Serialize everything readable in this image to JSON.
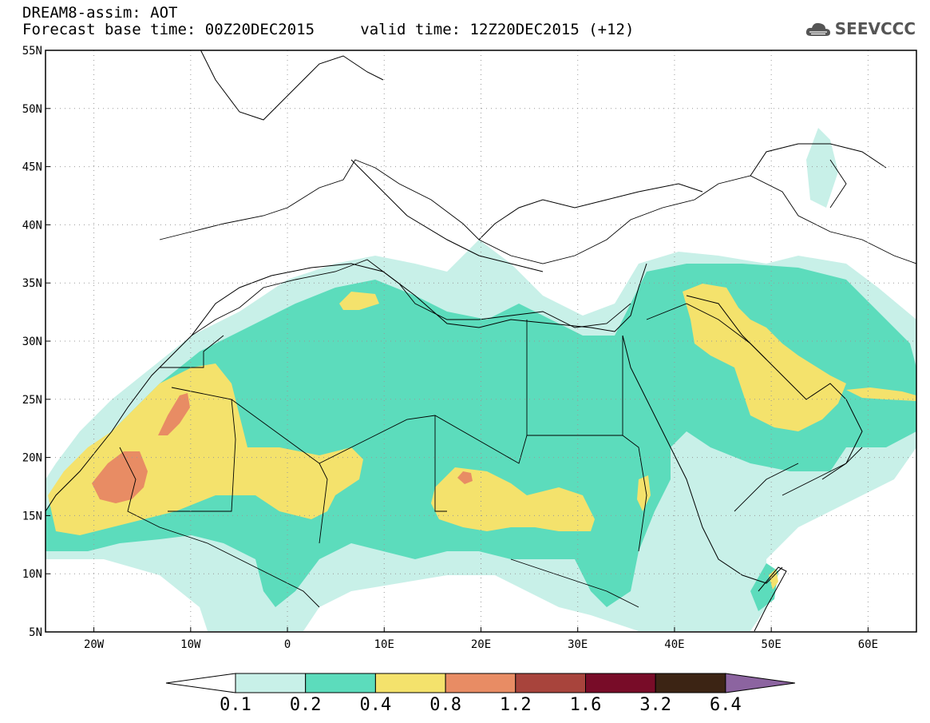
{
  "header": {
    "title": "DREAM8-assim: AOT",
    "subtitle_base": "Forecast base time: 00Z20DEC2015",
    "subtitle_valid": "valid time: 12Z20DEC2015 (+12)",
    "brand": "SEEVCCC"
  },
  "map": {
    "lon_range": [
      -25,
      65
    ],
    "lat_range": [
      5,
      55
    ],
    "lon_ticks": [
      "20W",
      "10W",
      "0",
      "10E",
      "20E",
      "30E",
      "40E",
      "50E",
      "60E"
    ],
    "lat_ticks": [
      "55N",
      "50N",
      "45N",
      "40N",
      "35N",
      "30N",
      "25N",
      "20N",
      "15N",
      "10N",
      "5N"
    ],
    "grid": true,
    "variable": "Aerosol optical thickness"
  },
  "colorbar": {
    "levels": [
      "0.1",
      "0.2",
      "0.4",
      "0.8",
      "1.2",
      "1.6",
      "3.2",
      "6.4"
    ],
    "colors": [
      "#ffffff",
      "#c8f0e8",
      "#5cdcbc",
      "#f4e26c",
      "#e88c64",
      "#a8443c",
      "#780c28",
      "#3c2414",
      "#8c64a0"
    ]
  },
  "colors": {
    "c1": "#c8f0e8",
    "c2": "#5cdcbc",
    "c3": "#f4e26c",
    "c4": "#e88c64"
  }
}
